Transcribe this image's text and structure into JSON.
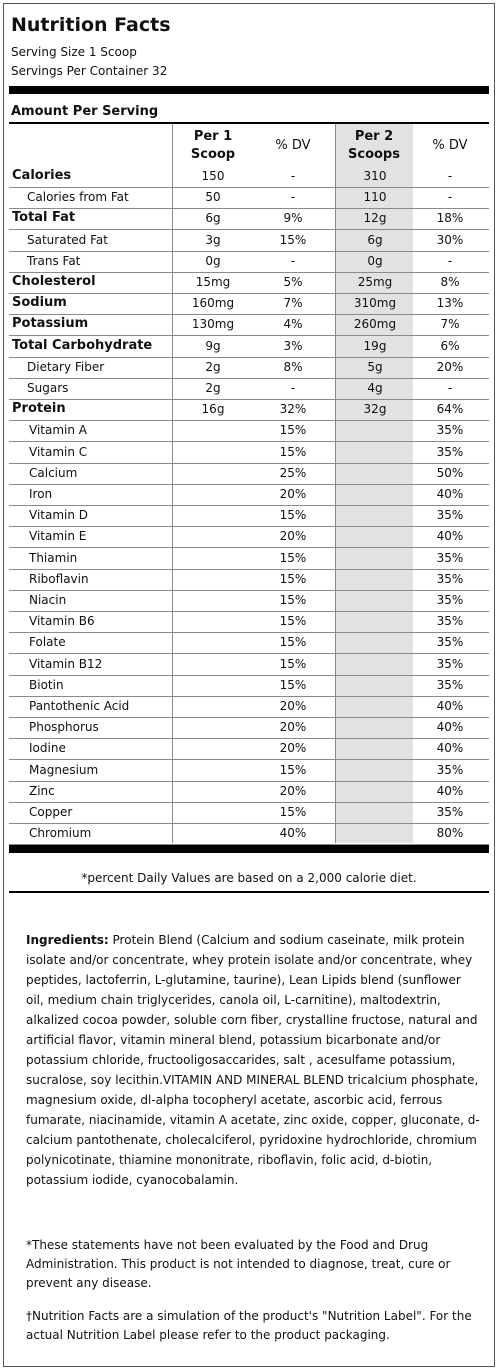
{
  "title": "Nutrition Facts",
  "serving_size": "Serving Size 1 Scoop",
  "servings_per_container": "Servings Per Container 32",
  "amount_per_serving": "Amount Per Serving",
  "columns": {
    "per1_line1": "Per 1",
    "per1_line2": "Scoop",
    "dv1": "% DV",
    "per2_line1": "Per 2",
    "per2_line2": "Scoops",
    "dv2": "% DV"
  },
  "rows": [
    {
      "label": "Calories",
      "bold": true,
      "indent": 0,
      "v1": "150",
      "d1": "-",
      "v2": "310",
      "d2": "-"
    },
    {
      "label": "Calories from Fat",
      "bold": false,
      "indent": 1,
      "v1": "50",
      "d1": "-",
      "v2": "110",
      "d2": "-"
    },
    {
      "label": "Total Fat",
      "bold": true,
      "indent": 0,
      "v1": "6g",
      "d1": "9%",
      "v2": "12g",
      "d2": "18%"
    },
    {
      "label": "Saturated Fat",
      "bold": false,
      "indent": 1,
      "v1": "3g",
      "d1": "15%",
      "v2": "6g",
      "d2": "30%"
    },
    {
      "label": "Trans Fat",
      "bold": false,
      "indent": 1,
      "v1": "0g",
      "d1": "-",
      "v2": "0g",
      "d2": "-"
    },
    {
      "label": "Cholesterol",
      "bold": true,
      "indent": 0,
      "v1": "15mg",
      "d1": "5%",
      "v2": "25mg",
      "d2": "8%"
    },
    {
      "label": "Sodium",
      "bold": true,
      "indent": 0,
      "v1": "160mg",
      "d1": "7%",
      "v2": "310mg",
      "d2": "13%"
    },
    {
      "label": "Potassium",
      "bold": true,
      "indent": 0,
      "v1": "130mg",
      "d1": "4%",
      "v2": "260mg",
      "d2": "7%"
    },
    {
      "label": "Total Carbohydrate",
      "bold": true,
      "indent": 0,
      "v1": "9g",
      "d1": "3%",
      "v2": "19g",
      "d2": "6%"
    },
    {
      "label": "Dietary Fiber",
      "bold": false,
      "indent": 1,
      "v1": "2g",
      "d1": "8%",
      "v2": "5g",
      "d2": "20%"
    },
    {
      "label": "Sugars",
      "bold": false,
      "indent": 1,
      "v1": "2g",
      "d1": "-",
      "v2": "4g",
      "d2": "-"
    },
    {
      "label": "Protein",
      "bold": true,
      "indent": 0,
      "v1": "16g",
      "d1": "32%",
      "v2": "32g",
      "d2": "64%"
    },
    {
      "label": "Vitamin A",
      "bold": false,
      "indent": 2,
      "v1": "",
      "d1": "15%",
      "v2": "",
      "d2": "35%"
    },
    {
      "label": "Vitamin C",
      "bold": false,
      "indent": 2,
      "v1": "",
      "d1": "15%",
      "v2": "",
      "d2": "35%"
    },
    {
      "label": "Calcium",
      "bold": false,
      "indent": 2,
      "v1": "",
      "d1": "25%",
      "v2": "",
      "d2": "50%"
    },
    {
      "label": "Iron",
      "bold": false,
      "indent": 2,
      "v1": "",
      "d1": "20%",
      "v2": "",
      "d2": "40%"
    },
    {
      "label": "Vitamin D",
      "bold": false,
      "indent": 2,
      "v1": "",
      "d1": "15%",
      "v2": "",
      "d2": "35%"
    },
    {
      "label": "Vitamin E",
      "bold": false,
      "indent": 2,
      "v1": "",
      "d1": "20%",
      "v2": "",
      "d2": "40%"
    },
    {
      "label": "Thiamin",
      "bold": false,
      "indent": 2,
      "v1": "",
      "d1": "15%",
      "v2": "",
      "d2": "35%"
    },
    {
      "label": "Riboflavin",
      "bold": false,
      "indent": 2,
      "v1": "",
      "d1": "15%",
      "v2": "",
      "d2": "35%"
    },
    {
      "label": "Niacin",
      "bold": false,
      "indent": 2,
      "v1": "",
      "d1": "15%",
      "v2": "",
      "d2": "35%"
    },
    {
      "label": "Vitamin B6",
      "bold": false,
      "indent": 2,
      "v1": "",
      "d1": "15%",
      "v2": "",
      "d2": "35%"
    },
    {
      "label": "Folate",
      "bold": false,
      "indent": 2,
      "v1": "",
      "d1": "15%",
      "v2": "",
      "d2": "35%"
    },
    {
      "label": "Vitamin B12",
      "bold": false,
      "indent": 2,
      "v1": "",
      "d1": "15%",
      "v2": "",
      "d2": "35%"
    },
    {
      "label": "Biotin",
      "bold": false,
      "indent": 2,
      "v1": "",
      "d1": "15%",
      "v2": "",
      "d2": "35%"
    },
    {
      "label": "Pantothenic Acid",
      "bold": false,
      "indent": 2,
      "v1": "",
      "d1": "20%",
      "v2": "",
      "d2": "40%"
    },
    {
      "label": "Phosphorus",
      "bold": false,
      "indent": 2,
      "v1": "",
      "d1": "20%",
      "v2": "",
      "d2": "40%"
    },
    {
      "label": "Iodine",
      "bold": false,
      "indent": 2,
      "v1": "",
      "d1": "20%",
      "v2": "",
      "d2": "40%"
    },
    {
      "label": "Magnesium",
      "bold": false,
      "indent": 2,
      "v1": "",
      "d1": "15%",
      "v2": "",
      "d2": "35%"
    },
    {
      "label": "Zinc",
      "bold": false,
      "indent": 2,
      "v1": "",
      "d1": "20%",
      "v2": "",
      "d2": "40%"
    },
    {
      "label": "Copper",
      "bold": false,
      "indent": 2,
      "v1": "",
      "d1": "15%",
      "v2": "",
      "d2": "35%"
    },
    {
      "label": "Chromium",
      "bold": false,
      "indent": 2,
      "v1": "",
      "d1": "40%",
      "v2": "",
      "d2": "80%"
    }
  ],
  "daily_value_note": "*percent Daily Values are based on a 2,000 calorie diet.",
  "ingredients_label": "Ingredients:",
  "ingredients_text": " Protein Blend (Calcium and sodium caseinate, milk protein isolate and/or concentrate, whey protein isolate and/or concentrate, whey peptides, lactoferrin, L-glutamine, taurine), Lean Lipids blend (sunflower oil, medium chain triglycerides, canola oil, L-carnitine), maltodextrin, alkalized cocoa powder, soluble corn fiber, crystalline fructose, natural and artificial flavor, vitamin mineral blend, potassium bicarbonate and/or potassium chloride, fructooligosaccarides, salt , acesulfame potassium, sucralose, soy lecithin.VITAMIN AND MINERAL BLEND tricalcium phosphate, magnesium oxide, dl-alpha tocopheryl acetate, ascorbic acid, ferrous fumarate, niacinamide, vitamin A acetate, zinc oxide, copper, gluconate, d-calcium pantothenate, cholecalciferol, pyridoxine hydrochloride, chromium polynicotinate, thiamine mononitrate, riboflavin, folic acid, d-biotin, potassium iodide, cyanocobalamin.",
  "fda_disclaimer": "*These statements have not been evaluated by the Food and Drug Administration. This product is not intended to diagnose, treat, cure or prevent any disease.",
  "simulation_note": "†Nutrition Facts are a simulation of the product's \"Nutrition Label\". For the actual Nutrition Label please refer to the product packaging."
}
